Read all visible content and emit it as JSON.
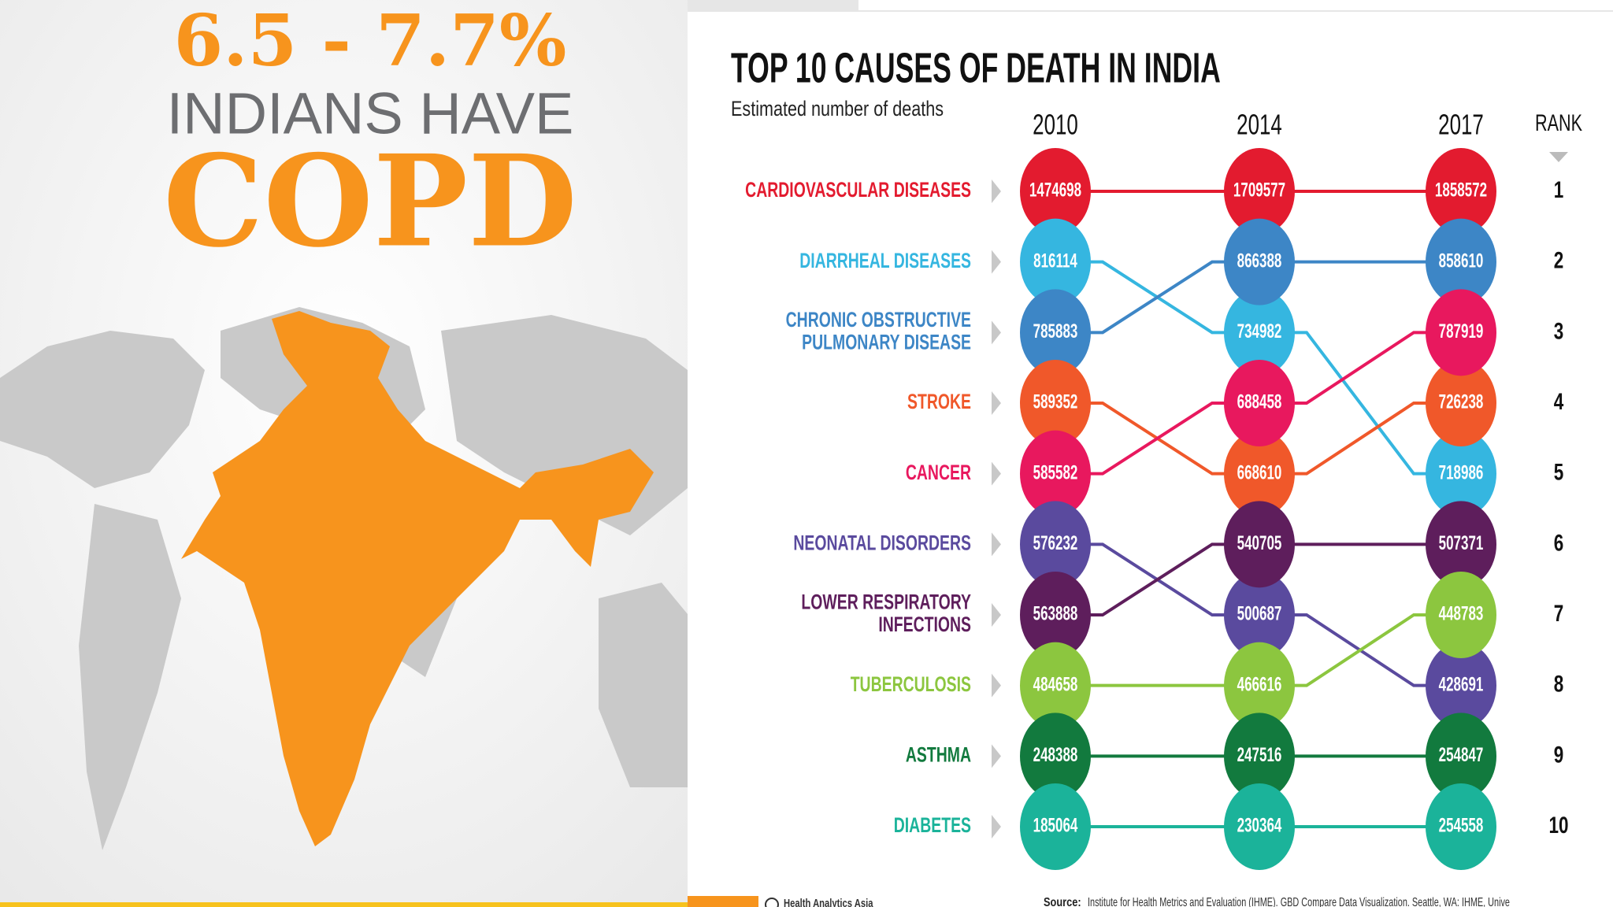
{
  "infographic": {
    "headline": "6.5 - 7.7%",
    "line2": "INDIANS HAVE",
    "line3": "COPD"
  },
  "chart_data": {
    "type": "bump",
    "title": "TOP 10 CAUSES OF DEATH IN INDIA",
    "subtitle": "Estimated number of deaths",
    "categories": [
      "2010",
      "2014",
      "2017"
    ],
    "rank_label": "RANK",
    "ylim": [
      1,
      10
    ],
    "yticks": [
      1,
      2,
      3,
      4,
      5,
      6,
      7,
      8,
      9,
      10
    ],
    "series": [
      {
        "name": "CARDIOVASCULAR DISEASES",
        "color": "#e31b2f",
        "values": [
          1474698,
          1709577,
          1858572
        ],
        "ranks": [
          1,
          1,
          1
        ]
      },
      {
        "name": "DIARRHEAL DISEASES",
        "color": "#35b6e0",
        "values": [
          816114,
          734982,
          718986
        ],
        "ranks": [
          2,
          3,
          5
        ]
      },
      {
        "name": "CHRONIC OBSTRUCTIVE\nPULMONARY DISEASE",
        "color": "#3d86c6",
        "values": [
          785883,
          866388,
          858610
        ],
        "ranks": [
          3,
          2,
          2
        ]
      },
      {
        "name": "STROKE",
        "color": "#f0582a",
        "values": [
          589352,
          668610,
          726238
        ],
        "ranks": [
          4,
          5,
          4
        ]
      },
      {
        "name": "CANCER",
        "color": "#e8185e",
        "values": [
          585582,
          688458,
          787919
        ],
        "ranks": [
          5,
          4,
          3
        ]
      },
      {
        "name": "NEONATAL DISORDERS",
        "color": "#5a4a9e",
        "values": [
          576232,
          500687,
          428691
        ],
        "ranks": [
          6,
          7,
          8
        ]
      },
      {
        "name": "LOWER RESPIRATORY\nINFECTIONS",
        "color": "#5e1e5c",
        "values": [
          563888,
          540705,
          507371
        ],
        "ranks": [
          7,
          6,
          6
        ]
      },
      {
        "name": "TUBERCULOSIS",
        "color": "#8cc63f",
        "values": [
          484658,
          466616,
          448783
        ],
        "ranks": [
          8,
          8,
          7
        ]
      },
      {
        "name": "ASTHMA",
        "color": "#127a3e",
        "values": [
          248388,
          247516,
          254847
        ],
        "ranks": [
          9,
          9,
          9
        ]
      },
      {
        "name": "DIABETES",
        "color": "#1bb39a",
        "values": [
          185064,
          230364,
          254558
        ],
        "ranks": [
          10,
          10,
          10
        ]
      }
    ],
    "source_label": "Source:",
    "source": "Institute for Health Metrics and Evaluation (IHME). GBD Compare Data Visualization. Seattle, WA: IHME, Unive",
    "publisher": "Health Analytics Asia"
  }
}
